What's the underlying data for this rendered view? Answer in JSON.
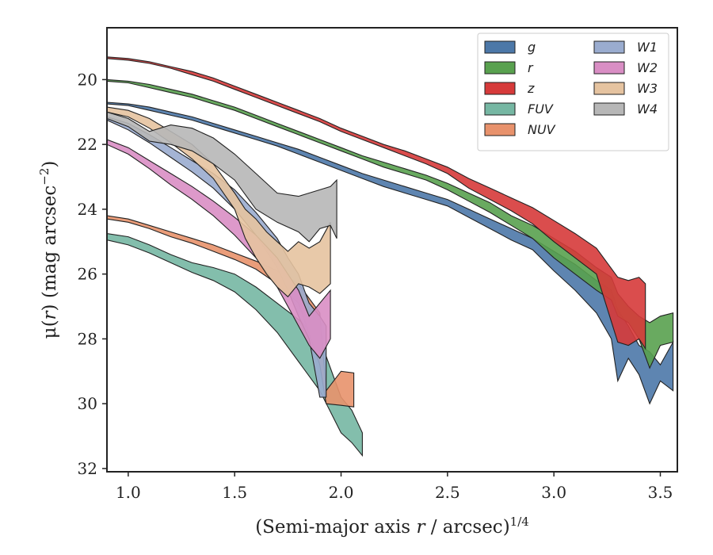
{
  "chart_data": {
    "type": "area",
    "title": "",
    "xlabel": "(Semi-major axis r / arcsec)",
    "xlabel_italic": "r",
    "xlabel_exponent": "1/4",
    "ylabel": "μ(r) (mag arcsec",
    "ylabel_exponent": "−2",
    "ylabel_close": ")",
    "xlim": [
      0.9,
      3.58
    ],
    "ylim": [
      32.1,
      18.4
    ],
    "y_inverted": true,
    "x_ticks": [
      1.0,
      1.5,
      2.0,
      2.5,
      3.0,
      3.5
    ],
    "x_tick_labels": [
      "1.0",
      "1.5",
      "2.0",
      "2.5",
      "3.0",
      "3.5"
    ],
    "y_ticks": [
      20,
      22,
      24,
      26,
      28,
      30,
      32
    ],
    "y_tick_labels": [
      "20",
      "22",
      "24",
      "26",
      "28",
      "30",
      "32"
    ],
    "grid": false,
    "legend": {
      "position": "top-right",
      "columns": 2
    },
    "series": [
      {
        "name": "g",
        "color": "#4c78a8",
        "x": [
          0.9,
          1.0,
          1.1,
          1.2,
          1.3,
          1.4,
          1.5,
          1.6,
          1.7,
          1.8,
          1.9,
          2.0,
          2.1,
          2.2,
          2.3,
          2.4,
          2.5,
          2.6,
          2.7,
          2.8,
          2.9,
          3.0,
          3.1,
          3.2,
          3.27,
          3.3,
          3.35,
          3.4,
          3.45,
          3.5,
          3.56
        ],
        "top": [
          20.7,
          20.75,
          20.85,
          21.0,
          21.15,
          21.35,
          21.55,
          21.75,
          21.95,
          22.15,
          22.4,
          22.65,
          22.9,
          23.1,
          23.3,
          23.5,
          23.7,
          24.0,
          24.3,
          24.6,
          24.9,
          25.3,
          25.7,
          26.2,
          26.5,
          27.1,
          27.6,
          28.2,
          28.4,
          28.8,
          28.1
        ],
        "bot": [
          20.75,
          20.8,
          20.95,
          21.1,
          21.25,
          21.45,
          21.65,
          21.85,
          22.05,
          22.3,
          22.55,
          22.8,
          23.05,
          23.3,
          23.5,
          23.7,
          23.9,
          24.25,
          24.6,
          24.95,
          25.25,
          25.9,
          26.5,
          27.2,
          28.0,
          29.3,
          28.6,
          29.1,
          30.0,
          29.3,
          29.6
        ]
      },
      {
        "name": "r",
        "color": "#59a14f",
        "x": [
          0.9,
          1.0,
          1.1,
          1.2,
          1.3,
          1.4,
          1.5,
          1.6,
          1.7,
          1.8,
          1.9,
          2.0,
          2.1,
          2.2,
          2.3,
          2.4,
          2.5,
          2.6,
          2.7,
          2.8,
          2.9,
          3.0,
          3.1,
          3.2,
          3.27,
          3.3,
          3.35,
          3.4,
          3.45,
          3.5,
          3.56
        ],
        "top": [
          20.0,
          20.05,
          20.15,
          20.3,
          20.45,
          20.65,
          20.85,
          21.1,
          21.35,
          21.6,
          21.85,
          22.1,
          22.35,
          22.55,
          22.75,
          22.95,
          23.2,
          23.5,
          23.8,
          24.2,
          24.5,
          24.9,
          25.3,
          25.8,
          26.1,
          26.6,
          27.0,
          27.3,
          27.5,
          27.3,
          27.2
        ],
        "bot": [
          20.05,
          20.1,
          20.25,
          20.4,
          20.55,
          20.75,
          20.95,
          21.2,
          21.45,
          21.7,
          21.95,
          22.2,
          22.45,
          22.7,
          22.9,
          23.1,
          23.4,
          23.75,
          24.1,
          24.5,
          24.9,
          25.5,
          26.0,
          26.5,
          26.8,
          27.3,
          27.5,
          28.0,
          28.9,
          28.2,
          28.1
        ]
      },
      {
        "name": "z",
        "color": "#d63a3a",
        "x": [
          0.9,
          1.0,
          1.1,
          1.2,
          1.3,
          1.4,
          1.5,
          1.6,
          1.7,
          1.8,
          1.9,
          2.0,
          2.1,
          2.2,
          2.3,
          2.4,
          2.5,
          2.6,
          2.7,
          2.8,
          2.9,
          3.0,
          3.1,
          3.2,
          3.3,
          3.35,
          3.4,
          3.43
        ],
        "top": [
          19.3,
          19.35,
          19.45,
          19.6,
          19.75,
          19.95,
          20.2,
          20.45,
          20.7,
          20.95,
          21.2,
          21.5,
          21.75,
          22.0,
          22.2,
          22.45,
          22.7,
          23.05,
          23.35,
          23.65,
          23.95,
          24.35,
          24.75,
          25.2,
          26.1,
          26.2,
          26.1,
          26.3
        ],
        "bot": [
          19.35,
          19.4,
          19.5,
          19.65,
          19.85,
          20.05,
          20.3,
          20.55,
          20.8,
          21.05,
          21.3,
          21.6,
          21.85,
          22.1,
          22.35,
          22.6,
          22.9,
          23.35,
          23.7,
          24.05,
          24.45,
          25.0,
          25.5,
          26.0,
          28.1,
          28.2,
          28.0,
          28.3
        ]
      },
      {
        "name": "FUV",
        "color": "#76b7a3",
        "x": [
          0.9,
          1.0,
          1.1,
          1.2,
          1.3,
          1.4,
          1.5,
          1.6,
          1.7,
          1.8,
          1.9,
          2.0,
          2.05,
          2.1
        ],
        "top": [
          24.75,
          24.85,
          25.1,
          25.4,
          25.65,
          25.8,
          26.0,
          26.4,
          26.9,
          27.4,
          28.0,
          29.8,
          30.2,
          30.9
        ],
        "bot": [
          24.95,
          25.1,
          25.35,
          25.65,
          25.95,
          26.2,
          26.55,
          27.1,
          27.8,
          28.7,
          29.6,
          30.9,
          31.2,
          31.6
        ]
      },
      {
        "name": "NUV",
        "color": "#e8926c",
        "x": [
          0.9,
          1.0,
          1.1,
          1.2,
          1.3,
          1.4,
          1.5,
          1.6,
          1.7,
          1.8,
          1.9,
          1.93,
          2.0,
          2.06
        ],
        "top": [
          24.2,
          24.3,
          24.5,
          24.7,
          24.9,
          25.1,
          25.35,
          25.6,
          25.9,
          26.3,
          27.2,
          29.6,
          29.0,
          29.05
        ],
        "bot": [
          24.3,
          24.4,
          24.6,
          24.85,
          25.05,
          25.3,
          25.55,
          25.85,
          26.3,
          26.9,
          28.8,
          30.0,
          30.05,
          30.1
        ]
      },
      {
        "name": "W1",
        "color": "#9aaccf",
        "x": [
          0.9,
          1.0,
          1.1,
          1.2,
          1.3,
          1.4,
          1.5,
          1.6,
          1.7,
          1.75,
          1.8,
          1.85,
          1.9,
          1.93
        ],
        "top": [
          21.15,
          21.35,
          21.7,
          22.1,
          22.5,
          22.9,
          23.4,
          24.1,
          24.9,
          25.5,
          26.0,
          26.9,
          27.3,
          27.6
        ],
        "bot": [
          21.25,
          21.55,
          21.95,
          22.4,
          22.85,
          23.35,
          24.0,
          24.8,
          25.8,
          26.5,
          27.3,
          28.0,
          29.8,
          29.8
        ]
      },
      {
        "name": "W2",
        "color": "#d98ec4",
        "x": [
          0.9,
          1.0,
          1.1,
          1.2,
          1.3,
          1.4,
          1.5,
          1.6,
          1.7,
          1.75,
          1.8,
          1.85,
          1.9,
          1.95
        ],
        "top": [
          21.85,
          22.1,
          22.5,
          22.9,
          23.3,
          23.75,
          24.25,
          24.8,
          25.5,
          26.0,
          26.5,
          27.3,
          26.9,
          26.5
        ],
        "bot": [
          22.0,
          22.3,
          22.75,
          23.25,
          23.7,
          24.2,
          24.8,
          25.5,
          26.4,
          27.0,
          27.6,
          28.2,
          28.6,
          28.0
        ]
      },
      {
        "name": "W3",
        "color": "#e5c3a0",
        "x": [
          0.9,
          1.0,
          1.1,
          1.2,
          1.3,
          1.4,
          1.5,
          1.55,
          1.6,
          1.65,
          1.7,
          1.75,
          1.8,
          1.85,
          1.9,
          1.95
        ],
        "top": [
          20.85,
          20.95,
          21.2,
          21.6,
          22.0,
          22.6,
          23.5,
          24.0,
          24.3,
          24.7,
          25.0,
          25.3,
          25.0,
          25.2,
          25.0,
          24.4
        ],
        "bot": [
          21.0,
          21.15,
          21.5,
          21.95,
          22.45,
          23.05,
          24.0,
          24.9,
          25.5,
          26.0,
          26.4,
          26.7,
          26.3,
          26.4,
          26.6,
          26.3
        ]
      },
      {
        "name": "W4",
        "color": "#b7b7b7",
        "x": [
          0.9,
          1.0,
          1.1,
          1.2,
          1.3,
          1.4,
          1.5,
          1.6,
          1.7,
          1.8,
          1.85,
          1.9,
          1.95,
          1.98
        ],
        "top": [
          21.0,
          21.2,
          21.6,
          21.4,
          21.5,
          21.8,
          22.3,
          22.9,
          23.5,
          23.6,
          23.5,
          23.4,
          23.3,
          23.1
        ],
        "bot": [
          21.2,
          21.45,
          21.9,
          22.0,
          22.2,
          22.6,
          23.1,
          24.0,
          24.4,
          24.7,
          25.0,
          24.6,
          24.5,
          24.9
        ]
      }
    ]
  }
}
